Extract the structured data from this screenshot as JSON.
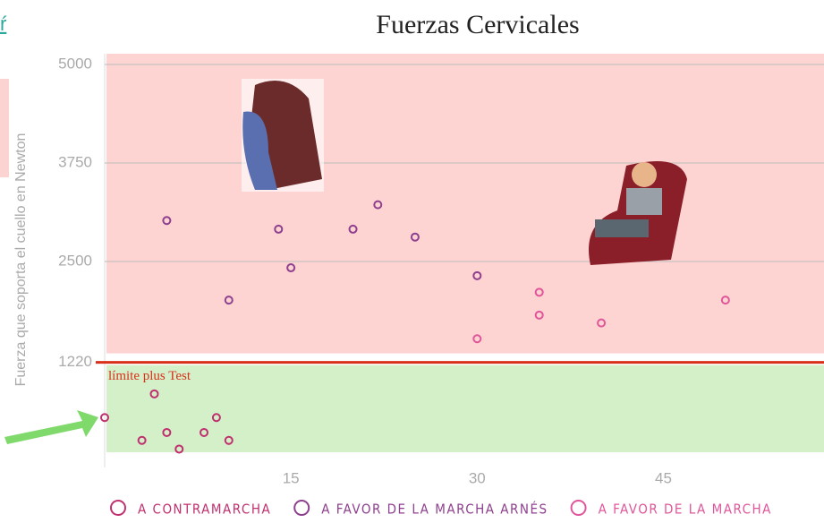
{
  "corner_link": "ŕ",
  "chart_data": {
    "type": "scatter",
    "title": "Fuerzas Cervicales",
    "y_label": "Fuerza que soporta el cuello en Newton",
    "annotation": "límite plus Test",
    "xlim": [
      0,
      57
    ],
    "ylim": [
      0,
      5000
    ],
    "xticks": [
      15,
      30,
      45
    ],
    "yticks": [
      1220,
      2500,
      3750,
      5000
    ],
    "grid": true,
    "series": [
      {
        "name": "A CONTRAMARCHA",
        "color": "#c0306f",
        "x": [
          0,
          3,
          4,
          5,
          6,
          8,
          9,
          10
        ],
        "values": [
          520,
          230,
          820,
          330,
          120,
          330,
          520,
          230
        ]
      },
      {
        "name": "A FAVOR DE LA MARCHA ARNÉS",
        "color": "#8e3f8e",
        "x": [
          5,
          10,
          14,
          15,
          20,
          22,
          25,
          30
        ],
        "values": [
          3020,
          2010,
          2910,
          2420,
          2910,
          3220,
          2810,
          2320
        ]
      },
      {
        "name": "A FAVOR DE LA MARCHA",
        "color": "#e0569a",
        "x": [
          30,
          35,
          35,
          40,
          50
        ],
        "values": [
          1520,
          2110,
          1820,
          1720,
          2010
        ]
      }
    ]
  }
}
